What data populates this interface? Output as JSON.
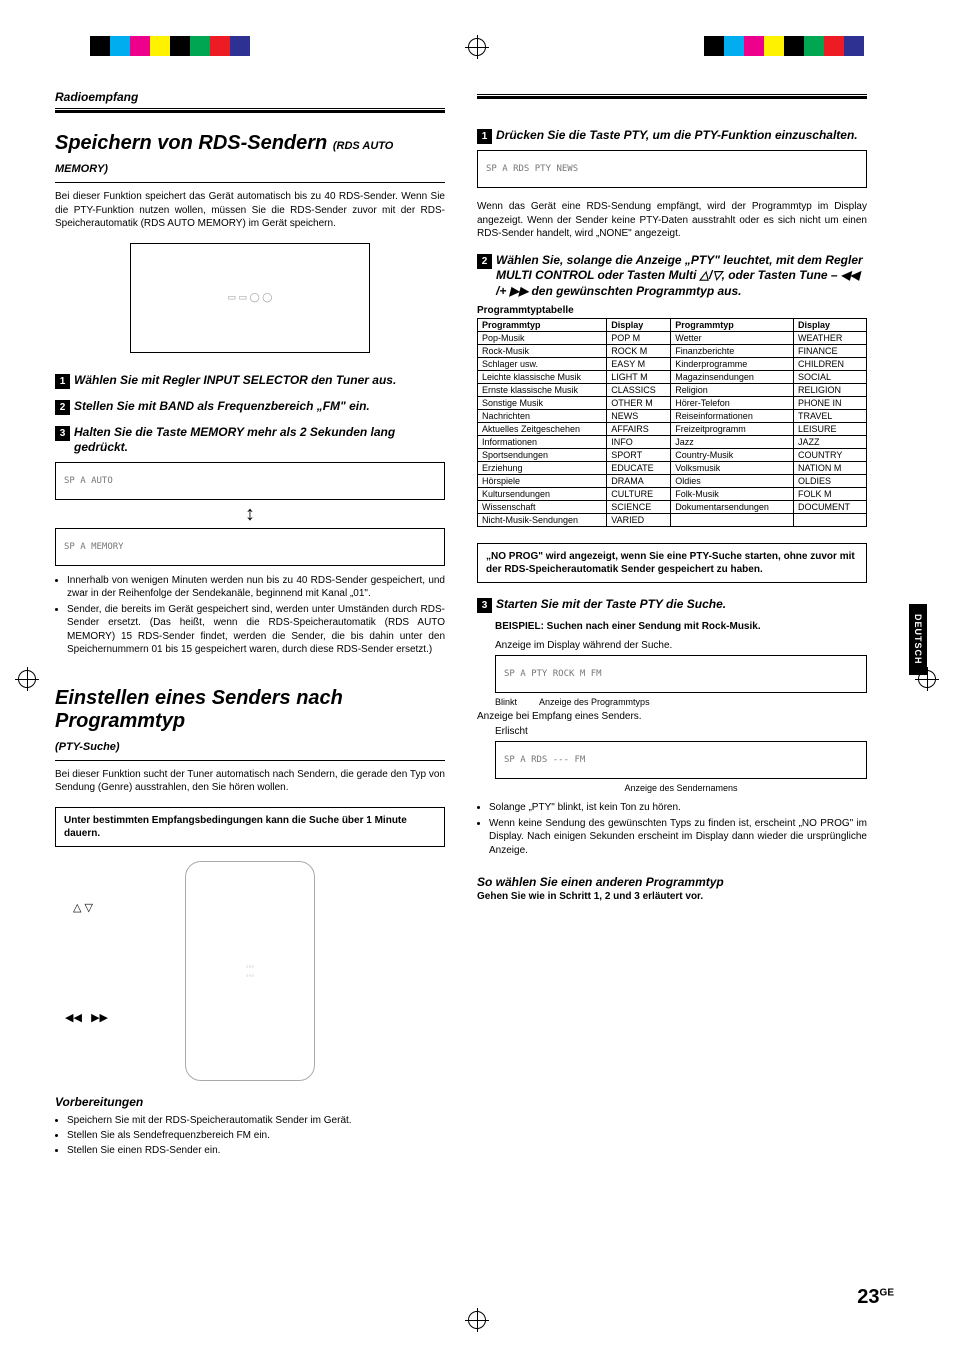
{
  "colorbar": [
    "#000000",
    "#00aeef",
    "#ec008c",
    "#fff200",
    "#000000",
    "#00a651",
    "#ed1c24",
    "#2e3192"
  ],
  "header_label": "Radioempfang",
  "section1": {
    "title_main": "Speichern von RDS-Sendern",
    "title_sub": "(RDS AUTO MEMORY)",
    "intro": "Bei dieser Funktion speichert das Gerät automatisch bis zu 40 RDS-Sender. Wenn Sie die PTY-Funktion nutzen wollen, müssen Sie die RDS-Sender zuvor mit der RDS-Speicherautomatik (RDS AUTO MEMORY) im Gerät speichern.",
    "step1": "Wählen Sie mit Regler INPUT SELECTOR den Tuner aus.",
    "step2": "Stellen Sie mit BAND als Frequenzbereich „FM\" ein.",
    "step3": "Halten Sie die Taste MEMORY mehr als 2 Sekunden lang gedrückt.",
    "bullets": [
      "Innerhalb von wenigen Minuten werden nun bis zu 40 RDS-Sender gespeichert, und zwar in der Reihenfolge der Sendekanäle, beginnend mit Kanal „01\".",
      "Sender, die bereits im Gerät gespeichert sind, werden unter Umständen durch RDS-Sender ersetzt. (Das heißt, wenn die RDS-Speicherautomatik (RDS AUTO MEMORY) 15 RDS-Sender findet, werden die Sender, die bis dahin unter den Speichernummern 01 bis 15 gespeichert waren, durch diese RDS-Sender ersetzt.)"
    ]
  },
  "section2": {
    "title_main": "Einstellen eines Senders nach Programmtyp",
    "title_sub": "(PTY-Suche)",
    "intro": "Bei dieser Funktion sucht der Tuner automatisch nach Sendern, die gerade den Typ von Sendung (Genre) ausstrahlen, den Sie hören wollen.",
    "note": "Unter bestimmten Empfangsbedingungen kann die Suche über 1 Minute dauern.",
    "prep_h": "Vorbereitungen",
    "prep": [
      "Speichern Sie mit der RDS-Speicherautomatik Sender im Gerät.",
      "Stellen Sie als Sendefrequenzbereich FM ein.",
      "Stellen Sie einen RDS-Sender ein."
    ]
  },
  "right": {
    "step1": "Drücken Sie die Taste PTY, um die PTY-Funktion einzuschalten.",
    "after1": "Wenn das Gerät eine RDS-Sendung empfängt, wird der Programmtyp im Display angezeigt. Wenn der Sender keine PTY-Daten ausstrahlt oder es sich nicht um einen RDS-Sender handelt, wird „NONE\" angezeigt.",
    "step2": "Wählen Sie, solange die Anzeige „PTY\" leuchtet, mit dem Regler MULTI CONTROL oder Tasten Multi △/▽, oder Tasten Tune – ◀◀ /+ ▶▶ den gewünschten Programmtyp aus.",
    "table_title": "Programmtyptabelle",
    "th": [
      "Programmtyp",
      "Display",
      "Programmtyp",
      "Display"
    ],
    "rows": [
      [
        "Pop-Musik",
        "POP M",
        "Wetter",
        "WEATHER"
      ],
      [
        "Rock-Musik",
        "ROCK M",
        "Finanzberichte",
        "FINANCE"
      ],
      [
        "Schlager usw.",
        "EASY M",
        "Kinderprogramme",
        "CHILDREN"
      ],
      [
        "Leichte klassische Musik",
        "LIGHT M",
        "Magazinsendungen",
        "SOCIAL"
      ],
      [
        "Ernste klassische Musik",
        "CLASSICS",
        "Religion",
        "RELIGION"
      ],
      [
        "Sonstige Musik",
        "OTHER M",
        "Hörer-Telefon",
        "PHONE IN"
      ],
      [
        "Nachrichten",
        "NEWS",
        "Reiseinformationen",
        "TRAVEL"
      ],
      [
        "Aktuelles Zeitgeschehen",
        "AFFAIRS",
        "Freizeitprogramm",
        "LEISURE"
      ],
      [
        "Informationen",
        "INFO",
        "Jazz",
        "JAZZ"
      ],
      [
        "Sportsendungen",
        "SPORT",
        "Country-Musik",
        "COUNTRY"
      ],
      [
        "Erziehung",
        "EDUCATE",
        "Volksmusik",
        "NATION M"
      ],
      [
        "Hörspiele",
        "DRAMA",
        "Oldies",
        "OLDIES"
      ],
      [
        "Kultursendungen",
        "CULTURE",
        "Folk-Musik",
        "FOLK M"
      ],
      [
        "Wissenschaft",
        "SCIENCE",
        "Dokumentarsendungen",
        "DOCUMENT"
      ],
      [
        "Nicht-Musik-Sendungen",
        "VARIED",
        "",
        ""
      ]
    ],
    "warn": "„NO PROG\" wird angezeigt, wenn Sie eine PTY-Suche starten, ohne zuvor mit der RDS-Speicherautomatik Sender gespeichert zu haben.",
    "step3": "Starten Sie mit der Taste PTY die Suche.",
    "ex_title": "BEISPIEL: Suchen nach einer Sendung mit Rock-Musik.",
    "ex_cap1": "Anzeige im Display während der Suche.",
    "ind_blinkt": "Blinkt",
    "ind_prog": "Anzeige des Programmtyps",
    "ex_cap2": "Anzeige bei Empfang eines Senders.",
    "ind_erl": "Erlischt",
    "ind_sender": "Anzeige des Sendernamens",
    "bullets": [
      "Solange „PTY\" blinkt, ist kein Ton zu hören.",
      "Wenn keine Sendung des gewünschten Typs zu finden ist, erscheint „NO PROG\" im Display. Nach einigen Sekunden erscheint im Display dann wieder die ursprüngliche Anzeige."
    ],
    "sub_h": "So wählen Sie einen anderen Programmtyp",
    "sub_b": "Gehen Sie wie in Schritt 1, 2 und 3  erläutert vor."
  },
  "side_tab": "DEUTSCH",
  "page_num": "23",
  "page_sup": "GE"
}
